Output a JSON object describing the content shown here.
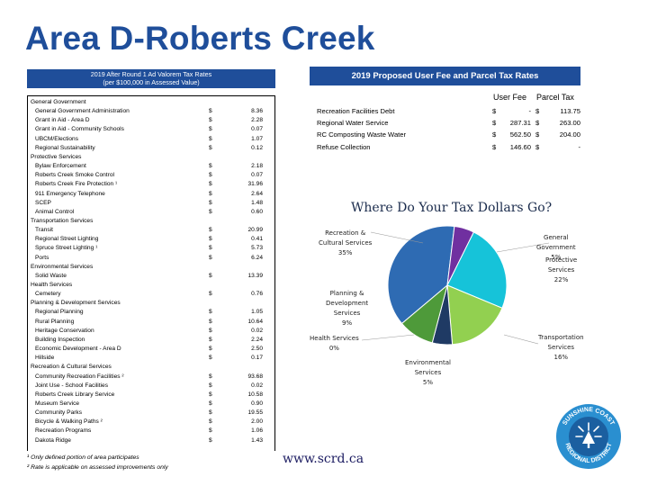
{
  "title": "Area D-Roberts Creek",
  "left_header": {
    "line1": "2019 After Round 1 Ad Valorem Tax Rates",
    "line2": "(per $100,000 in Assessed Value)"
  },
  "currency_symbol": "$",
  "tax_rows": [
    {
      "label": "General Government",
      "type": "section"
    },
    {
      "label": "General Government Administration",
      "type": "item",
      "value": "8.36"
    },
    {
      "label": "Grant in Aid - Area D",
      "type": "item",
      "value": "2.28"
    },
    {
      "label": "Grant in Aid - Community Schools",
      "type": "item",
      "value": "0.07"
    },
    {
      "label": "UBCM/Elections",
      "type": "item",
      "value": "1.07"
    },
    {
      "label": "Regional Sustainability",
      "type": "item",
      "value": "0.12"
    },
    {
      "label": "Protective Services",
      "type": "section"
    },
    {
      "label": "Bylaw Enforcement",
      "type": "item",
      "value": "2.18"
    },
    {
      "label": "Roberts Creek Smoke Control",
      "type": "item",
      "value": "0.07"
    },
    {
      "label": "Roberts Creek Fire Protection ¹",
      "type": "item",
      "value": "31.96"
    },
    {
      "label": "911 Emergency Telephone",
      "type": "item",
      "value": "2.64"
    },
    {
      "label": "SCEP",
      "type": "item",
      "value": "1.48"
    },
    {
      "label": "Animal Control",
      "type": "item",
      "value": "0.60"
    },
    {
      "label": "Transportation Services",
      "type": "section"
    },
    {
      "label": "Transit",
      "type": "item",
      "value": "20.99"
    },
    {
      "label": "Regional Street Lighting",
      "type": "item",
      "value": "0.41"
    },
    {
      "label": "Spruce Street Lighting ¹",
      "type": "item",
      "value": "5.73"
    },
    {
      "label": "Ports",
      "type": "item",
      "value": "6.24"
    },
    {
      "label": "Environmental Services",
      "type": "section"
    },
    {
      "label": "Solid Waste",
      "type": "item",
      "value": "13.39"
    },
    {
      "label": "Health Services",
      "type": "section"
    },
    {
      "label": "Cemetery",
      "type": "item",
      "value": "0.76"
    },
    {
      "label": "Planning & Development Services",
      "type": "section"
    },
    {
      "label": "Regional Planning",
      "type": "item",
      "value": "1.05"
    },
    {
      "label": "Rural Planning",
      "type": "item",
      "value": "10.64"
    },
    {
      "label": "Heritage Conservation",
      "type": "item",
      "value": "0.02"
    },
    {
      "label": "Building Inspection",
      "type": "item",
      "value": "2.24"
    },
    {
      "label": "Economic Development - Area D",
      "type": "item",
      "value": "2.50"
    },
    {
      "label": "Hillside",
      "type": "item",
      "value": "0.17"
    },
    {
      "label": "Recreation & Cultural Services",
      "type": "section"
    },
    {
      "label": "Community Recreation Facilities ²",
      "type": "item",
      "value": "93.68"
    },
    {
      "label": "Joint Use - School Facilities",
      "type": "item",
      "value": "0.02"
    },
    {
      "label": "Roberts Creek Library Service",
      "type": "item",
      "value": "10.58"
    },
    {
      "label": "Museum Service",
      "type": "item",
      "value": "0.90"
    },
    {
      "label": "Community Parks",
      "type": "item",
      "value": "19.55"
    },
    {
      "label": "Bicycle & Walking Paths ²",
      "type": "item",
      "value": "2.00"
    },
    {
      "label": "Recreation Programs",
      "type": "item",
      "value": "1.06"
    },
    {
      "label": "Dakota Ridge",
      "type": "item",
      "value": "1.43"
    }
  ],
  "footnotes": [
    "¹ Only defined portion of area participates",
    "² Rate is applicable on assessed improvements only"
  ],
  "right_header": "2019 Proposed User Fee and Parcel Tax Rates",
  "fee_columns": {
    "user_fee": "User Fee",
    "parcel_tax": "Parcel Tax"
  },
  "fee_rows": [
    {
      "label": "Recreation Facilities Debt",
      "user_fee": "-",
      "parcel_tax": "113.75"
    },
    {
      "label": "Regional Water Service",
      "user_fee": "287.31",
      "parcel_tax": "263.00"
    },
    {
      "label": "RC Composting Waste Water",
      "user_fee": "562.50",
      "parcel_tax": "204.00"
    },
    {
      "label": "Refuse Collection",
      "user_fee": "146.60",
      "parcel_tax": "-"
    }
  ],
  "chart_data": {
    "type": "pie",
    "title": "Where Do Your Tax Dollars Go?",
    "slices": [
      {
        "name": "Recreation & Cultural Services",
        "percent": 35,
        "color": "#2e6bb3"
      },
      {
        "name": "General Government",
        "percent": 5,
        "color": "#7030a0"
      },
      {
        "name": "Protective Services",
        "percent": 22,
        "color": "#16c3d9"
      },
      {
        "name": "Transportation Services",
        "percent": 16,
        "color": "#92d050"
      },
      {
        "name": "Environmental Services",
        "percent": 5,
        "color": "#1f3a64"
      },
      {
        "name": "Health Services",
        "percent": 0,
        "color": "#b0b0b0"
      },
      {
        "name": "Planning & Development Services",
        "percent": 9,
        "color": "#4e9a3a"
      }
    ],
    "labels": {
      "rec_line1": "Recreation &",
      "rec_line2": "Cultural Services",
      "rec_pct": "35%",
      "gen_line1": "General",
      "gen_line2": "Government",
      "gen_pct": "5%",
      "prot_line1": "Protective",
      "prot_line2": "Services",
      "prot_pct": "22%",
      "trans_line1": "Transportation",
      "trans_line2": "Services",
      "trans_pct": "16%",
      "env_line1": "Environmental",
      "env_line2": "Services",
      "env_pct": "5%",
      "health_line1": "Health Services",
      "health_pct": "0%",
      "plan_line1": "Planning &",
      "plan_line2": "Development",
      "plan_line3": "Services",
      "plan_pct": "9%"
    }
  },
  "website": "www.scrd.ca",
  "logo": {
    "top_text": "SUNSHINE COAST",
    "bottom_text": "REGIONAL DISTRICT",
    "icon": "sun-tree-icon"
  }
}
